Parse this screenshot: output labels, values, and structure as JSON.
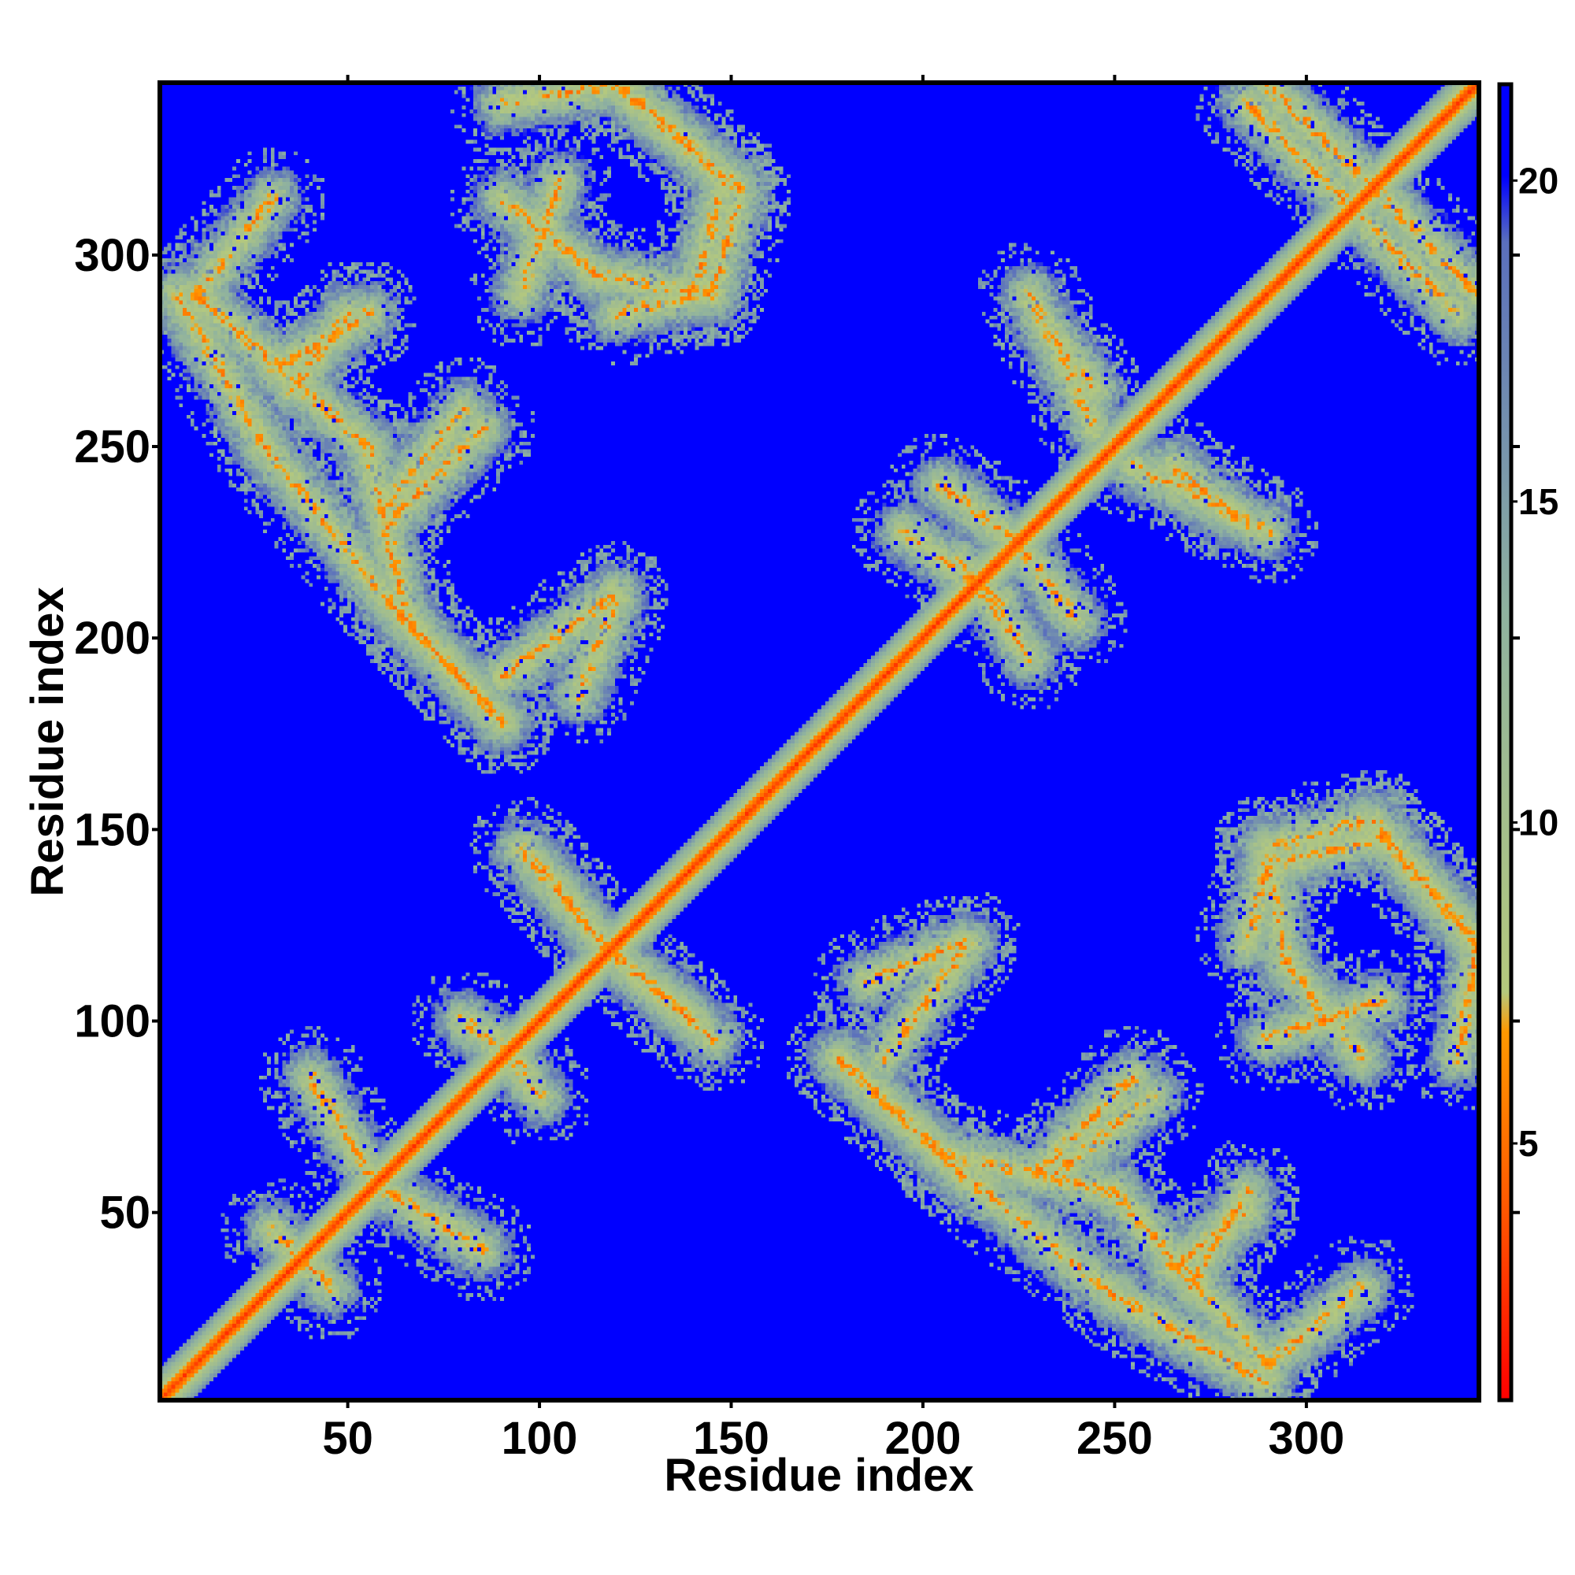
{
  "chart_data": {
    "type": "heatmap",
    "title": "",
    "xlabel": "Residue index",
    "ylabel": "Residue index",
    "xlim": [
      1,
      345
    ],
    "ylim": [
      1,
      345
    ],
    "xticks": [
      50,
      100,
      150,
      200,
      250,
      300
    ],
    "yticks": [
      50,
      100,
      150,
      200,
      250,
      300
    ],
    "xtick_labels": [
      "50",
      "100",
      "150",
      "200",
      "250",
      "300"
    ],
    "ytick_labels": [
      "50",
      "100",
      "150",
      "200",
      "250",
      "300"
    ],
    "grid": false,
    "colorbar": {
      "range": [
        1,
        21.5
      ],
      "ticks": [
        5,
        10,
        15,
        20
      ],
      "tick_labels": [
        "5",
        "10",
        "15",
        "20"
      ],
      "colors": [
        {
          "stop": 0.0,
          "color": "#ff0000"
        },
        {
          "stop": 0.15,
          "color": "#ff5a00"
        },
        {
          "stop": 0.28,
          "color": "#ff9900"
        },
        {
          "stop": 0.31,
          "color": "#b5c97d"
        },
        {
          "stop": 0.6,
          "color": "#8fb29f"
        },
        {
          "stop": 0.88,
          "color": "#5a6fbd"
        },
        {
          "stop": 0.93,
          "color": "#0000ff"
        },
        {
          "stop": 1.0,
          "color": "#0000ff"
        }
      ]
    },
    "background_value": 21.5,
    "background_color": "#0000ff",
    "description_features": {
      "diagonal": {
        "band_width_residues": 16,
        "core_value": 2.5
      },
      "contact_bands": [
        {
          "from": [
            5,
            290
          ],
          "to": [
            28,
            250
          ]
        },
        {
          "from": [
            28,
            250
          ],
          "to": [
            60,
            210
          ]
        },
        {
          "from": [
            60,
            210
          ],
          "to": [
            90,
            178
          ]
        },
        {
          "from": [
            30,
            270
          ],
          "to": [
            55,
            285
          ]
        },
        {
          "from": [
            60,
            230
          ],
          "to": [
            85,
            255
          ]
        },
        {
          "from": [
            90,
            190
          ],
          "to": [
            120,
            212
          ]
        },
        {
          "from": [
            90,
            315
          ],
          "to": [
            115,
            295
          ]
        },
        {
          "from": [
            115,
            295
          ],
          "to": [
            145,
            290
          ]
        },
        {
          "from": [
            145,
            290
          ],
          "to": [
            152,
            315
          ]
        },
        {
          "from": [
            120,
            345
          ],
          "to": [
            152,
            318
          ]
        },
        {
          "from": [
            232,
            282
          ],
          "to": [
            245,
            265
          ]
        },
        {
          "from": [
            255,
            245
          ],
          "to": [
            290,
            228
          ]
        },
        {
          "from": [
            290,
            345
          ],
          "to": [
            318,
            318
          ]
        },
        {
          "from": [
            315,
            310
          ],
          "to": [
            340,
            285
          ]
        },
        {
          "from": [
            195,
            228
          ],
          "to": [
            220,
            210
          ]
        },
        {
          "from": [
            225,
            225
          ],
          "to": [
            240,
            205
          ]
        },
        {
          "from": [
            30,
            45
          ],
          "to": [
            45,
            30
          ]
        },
        {
          "from": [
            60,
            55
          ],
          "to": [
            85,
            40
          ]
        },
        {
          "from": [
            88,
            95
          ],
          "to": [
            100,
            80
          ]
        },
        {
          "from": [
            100,
            140
          ],
          "to": [
            118,
            118
          ]
        },
        {
          "from": [
            118,
            118
          ],
          "to": [
            145,
            95
          ]
        },
        {
          "from": [
            178,
            90
          ],
          "to": [
            205,
            65
          ]
        },
        {
          "from": [
            205,
            65
          ],
          "to": [
            250,
            55
          ]
        },
        {
          "from": [
            250,
            55
          ],
          "to": [
            290,
            10
          ]
        },
        {
          "from": [
            185,
            110
          ],
          "to": [
            210,
            120
          ]
        },
        {
          "from": [
            235,
            60
          ],
          "to": [
            260,
            80
          ]
        },
        {
          "from": [
            265,
            35
          ],
          "to": [
            285,
            50
          ]
        },
        {
          "from": [
            290,
            10
          ],
          "to": [
            315,
            30
          ]
        },
        {
          "from": [
            290,
            95
          ],
          "to": [
            320,
            105
          ]
        },
        {
          "from": [
            285,
            120
          ],
          "to": [
            290,
            140
          ]
        },
        {
          "from": [
            290,
            140
          ],
          "to": [
            320,
            148
          ]
        },
        {
          "from": [
            320,
            148
          ],
          "to": [
            345,
            120
          ]
        },
        {
          "from": [
            340,
            90
          ],
          "to": [
            345,
            120
          ]
        }
      ]
    }
  }
}
